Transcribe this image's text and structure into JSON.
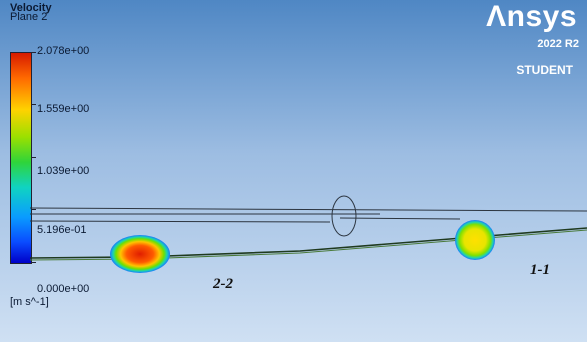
{
  "legend": {
    "variable": "Velocity",
    "location": "Plane 2",
    "ticks": [
      "2.078e+00",
      "1.559e+00",
      "1.039e+00",
      "5.196e-01",
      "0.000e+00"
    ],
    "unit": "[m s^-1]"
  },
  "brand": {
    "logo": "Λnsys",
    "version": "2022 R2",
    "edition": "STUDENT"
  },
  "annotations": {
    "section_2": "2-2",
    "section_1": "1-1"
  },
  "colors": {
    "background_top": "#4f87c4",
    "background_bottom": "#cfe0f3",
    "scale_max": "#d61a00",
    "scale_min": "#0000c8"
  }
}
